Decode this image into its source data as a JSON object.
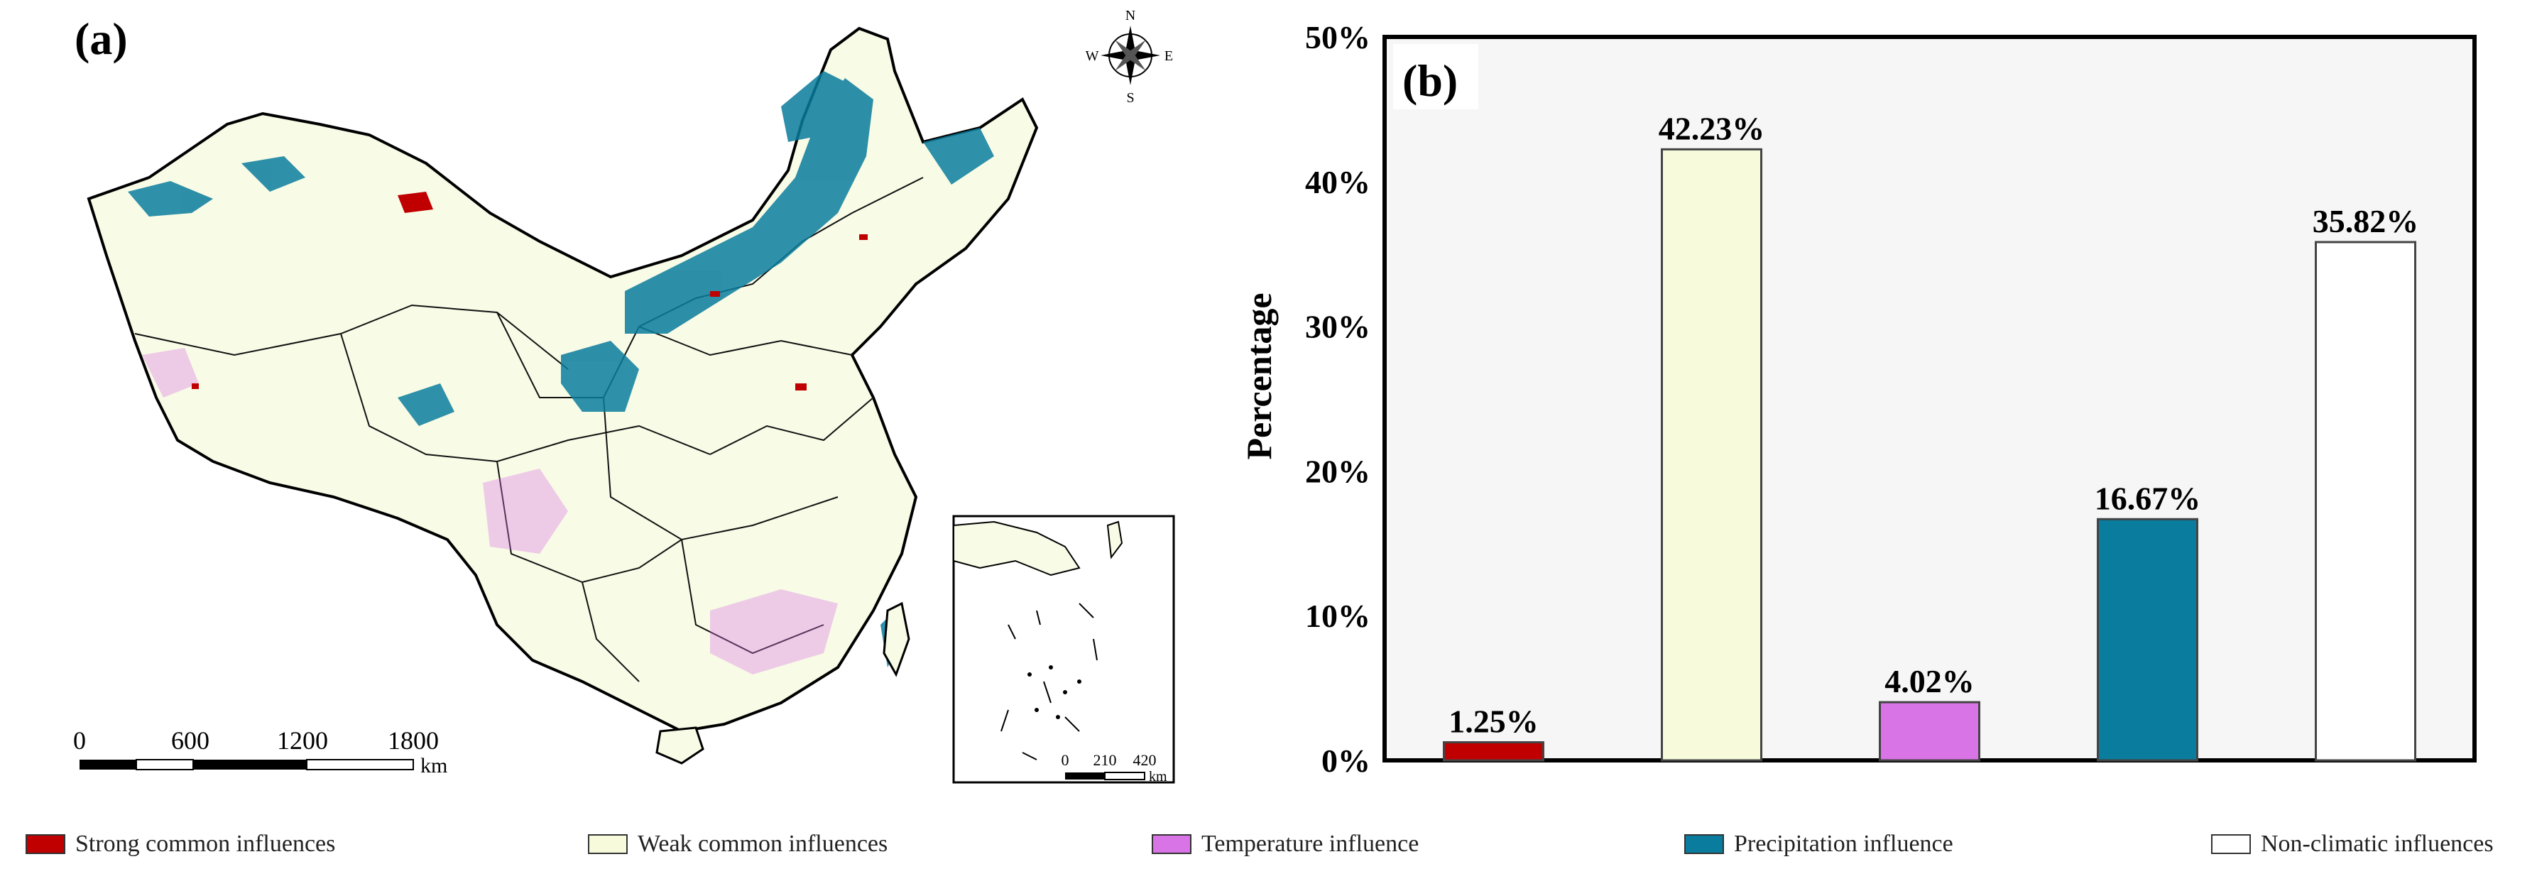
{
  "panel_a": {
    "label": "(a)",
    "compass": {
      "n": "N",
      "s": "S",
      "e": "E",
      "w": "W"
    },
    "main_scale": {
      "ticks": [
        "0",
        "600",
        "1200",
        "1800"
      ],
      "unit": "km"
    },
    "inset_scale": {
      "ticks": [
        "0",
        "210",
        "420"
      ],
      "unit": "km"
    }
  },
  "chart_data": {
    "type": "bar",
    "panel_label": "(b)",
    "ylabel": "Percentage",
    "ylim": [
      0,
      50
    ],
    "yticks": [
      "0%",
      "10%",
      "20%",
      "30%",
      "40%",
      "50%"
    ],
    "categories": [
      "Strong common influences",
      "Weak common influences",
      "Temperature influence",
      "Precipitation influence",
      "Non-climatic influences"
    ],
    "values": [
      1.25,
      42.23,
      4.02,
      16.67,
      35.82
    ],
    "data_labels": [
      "1.25%",
      "42.23%",
      "4.02%",
      "16.67%",
      "35.82%"
    ],
    "colors": [
      "#c00000",
      "#f7fbdc",
      "#d974e6",
      "#0a7c9d",
      "#ffffff"
    ]
  },
  "legend": {
    "items": [
      {
        "label": "Strong common influences",
        "color": "#c00000"
      },
      {
        "label": "Weak common influences",
        "color": "#f7fbdc"
      },
      {
        "label": "Temperature influence",
        "color": "#d974e6"
      },
      {
        "label": "Precipitation influence",
        "color": "#0a7c9d"
      },
      {
        "label": "Non-climatic influences",
        "color": "#ffffff"
      }
    ]
  }
}
